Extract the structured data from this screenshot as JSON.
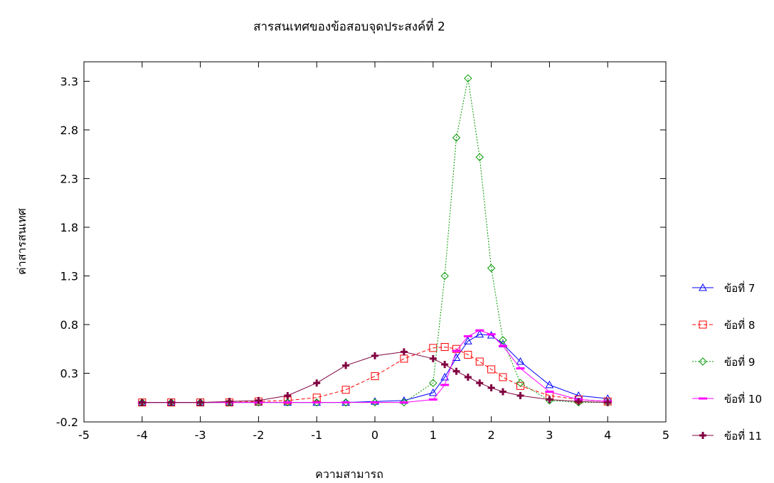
{
  "chart_data": {
    "type": "line",
    "title": "สารสนเทศของข้อสอบจุดประสงค์ที่ 2",
    "xlabel": "ความสามารถ",
    "ylabel": "ค่าสารสนเทศ",
    "xlim": [
      -5,
      5
    ],
    "ylim": [
      -0.2,
      3.5
    ],
    "xticks": [
      "-5",
      "-4",
      "-3",
      "-2",
      "-1",
      "0",
      "1",
      "2",
      "3",
      "4",
      "5"
    ],
    "yticks": [
      "-0.2",
      "0.3",
      "0.8",
      "1.3",
      "1.8",
      "2.3",
      "2.8",
      "3.3"
    ],
    "grid": false,
    "legend_position": "right",
    "x": [
      -4.0,
      -3.5,
      -3.0,
      -2.5,
      -2.0,
      -1.5,
      -1.0,
      -0.5,
      0.0,
      0.5,
      1.0,
      1.2,
      1.4,
      1.6,
      1.8,
      2.0,
      2.2,
      2.5,
      3.0,
      3.5,
      4.0
    ],
    "series": [
      {
        "name": "ข้อที่ 7",
        "color": "#0000ff",
        "marker": "triangle",
        "dash": "solid",
        "values": [
          0.0,
          0.0,
          0.0,
          0.0,
          0.0,
          0.0,
          0.0,
          0.0,
          0.01,
          0.02,
          0.1,
          0.26,
          0.46,
          0.63,
          0.7,
          0.69,
          0.6,
          0.42,
          0.18,
          0.07,
          0.04
        ]
      },
      {
        "name": "ข้อที่ 8",
        "color": "#ff0000",
        "marker": "square",
        "dash": "dashed",
        "values": [
          0.0,
          0.0,
          0.0,
          0.0,
          0.01,
          0.02,
          0.05,
          0.13,
          0.27,
          0.45,
          0.56,
          0.57,
          0.55,
          0.49,
          0.42,
          0.34,
          0.26,
          0.17,
          0.07,
          0.03,
          0.01
        ]
      },
      {
        "name": "ข้อที่ 9",
        "color": "#009900",
        "marker": "diamond",
        "dash": "dotted",
        "values": [
          0.0,
          0.0,
          0.0,
          0.0,
          0.0,
          0.0,
          0.0,
          0.0,
          0.0,
          0.0,
          0.2,
          1.3,
          2.72,
          3.33,
          2.52,
          1.38,
          0.64,
          0.2,
          0.02,
          0.0,
          0.0
        ]
      },
      {
        "name": "ข้อที่ 10",
        "color": "#ff00ff",
        "marker": "dash",
        "dash": "solid",
        "values": [
          0.0,
          0.0,
          0.0,
          0.0,
          0.0,
          0.0,
          0.0,
          0.0,
          0.0,
          0.0,
          0.03,
          0.18,
          0.53,
          0.68,
          0.74,
          0.7,
          0.58,
          0.35,
          0.11,
          0.03,
          0.01
        ]
      },
      {
        "name": "ข้อที่ 11",
        "color": "#800040",
        "marker": "plus",
        "dash": "solid",
        "values": [
          0.0,
          0.0,
          0.0,
          0.01,
          0.02,
          0.07,
          0.2,
          0.38,
          0.48,
          0.52,
          0.45,
          0.39,
          0.32,
          0.26,
          0.2,
          0.15,
          0.11,
          0.07,
          0.03,
          0.01,
          0.0
        ]
      }
    ]
  }
}
